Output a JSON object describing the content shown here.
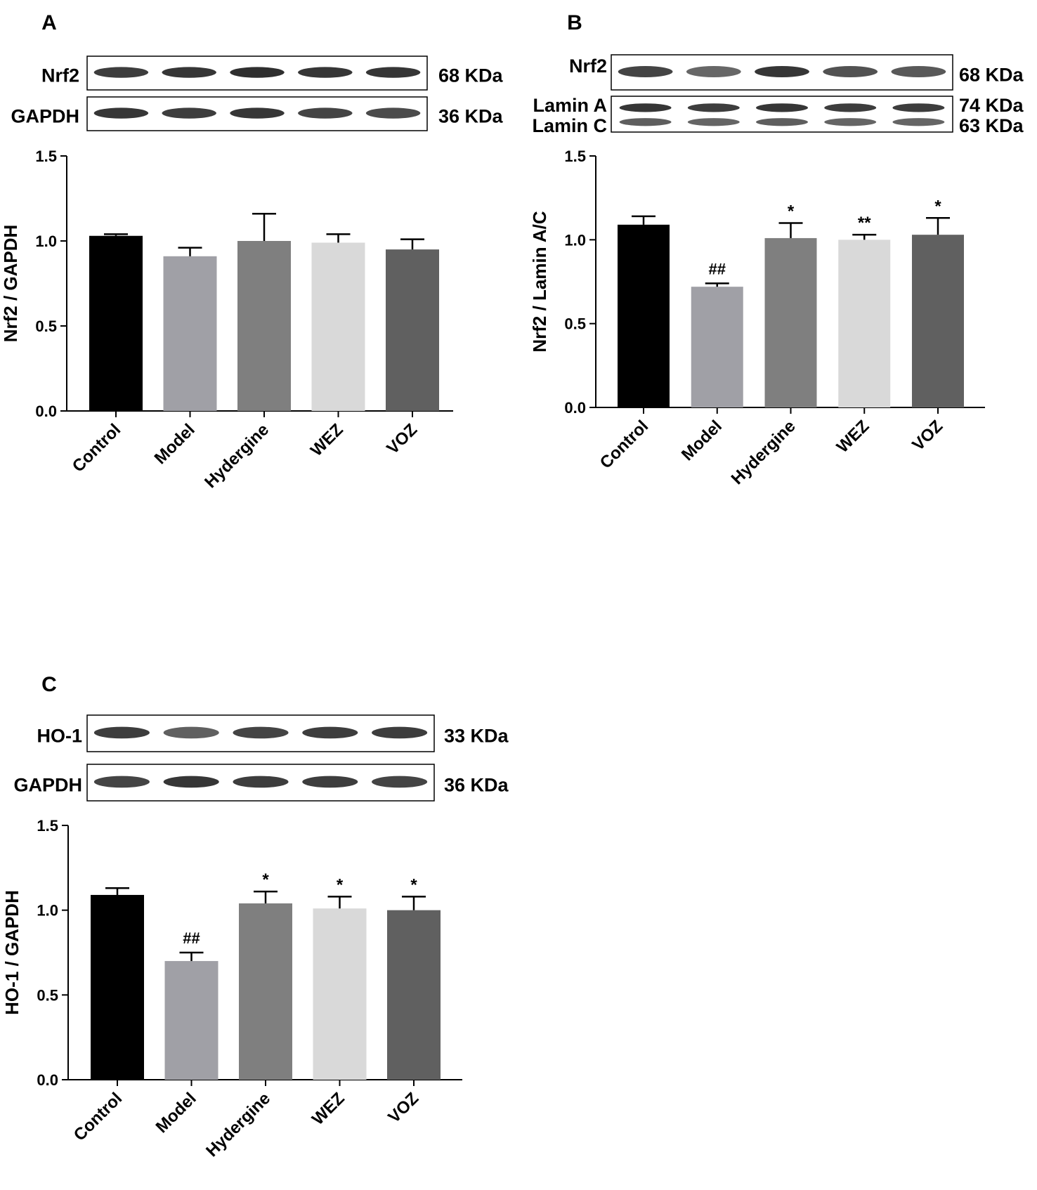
{
  "panels": [
    {
      "letter": "A",
      "blots": [
        {
          "label": "Nrf2",
          "kda": "68 KDa",
          "bands": [
            0.85,
            0.9,
            0.95,
            0.9,
            0.9
          ]
        },
        {
          "label": "GAPDH",
          "kda": "36 KDa",
          "bands": [
            0.9,
            0.85,
            0.9,
            0.8,
            0.75
          ]
        }
      ]
    },
    {
      "letter": "B",
      "blots": [
        {
          "label": "Nrf2",
          "kda": "68 KDa",
          "bands": [
            0.8,
            0.55,
            0.9,
            0.7,
            0.65
          ]
        },
        {
          "label": "Lamin A",
          "label2": "Lamin C",
          "kda": "74 KDa",
          "kda2": "63 KDa",
          "bands": [
            0.9,
            0.85,
            0.9,
            0.85,
            0.85
          ]
        }
      ]
    },
    {
      "letter": "C",
      "blots": [
        {
          "label": "HO-1",
          "kda": "33 KDa",
          "bands": [
            0.85,
            0.6,
            0.8,
            0.85,
            0.85
          ]
        },
        {
          "label": "GAPDH",
          "kda": "36 KDa",
          "bands": [
            0.8,
            0.9,
            0.85,
            0.85,
            0.8
          ]
        }
      ]
    }
  ],
  "chart_data": [
    {
      "type": "bar",
      "panel": "A",
      "categories": [
        "Control",
        "Model",
        "Hydergine",
        "WEZ",
        "VOZ"
      ],
      "values": [
        1.03,
        0.91,
        1.0,
        0.99,
        0.95
      ],
      "errors": [
        0.01,
        0.05,
        0.16,
        0.05,
        0.06
      ],
      "annotations": [
        "",
        "",
        "",
        "",
        ""
      ],
      "ylabel": "Nrf2 / GAPDH",
      "ylim": [
        0,
        1.5
      ],
      "yticks": [
        "0.0",
        "0.5",
        "1.0",
        "1.5"
      ],
      "colors": [
        "#000000",
        "#a0a0a6",
        "#7f7f7f",
        "#d9d9d9",
        "#606060"
      ]
    },
    {
      "type": "bar",
      "panel": "B",
      "categories": [
        "Control",
        "Model",
        "Hydergine",
        "WEZ",
        "VOZ"
      ],
      "values": [
        1.09,
        0.72,
        1.01,
        1.0,
        1.03
      ],
      "errors": [
        0.05,
        0.02,
        0.09,
        0.03,
        0.1
      ],
      "annotations": [
        "",
        "##",
        "*",
        "**",
        "*"
      ],
      "ylabel": "Nrf2 / Lamin A/C",
      "ylim": [
        0,
        1.5
      ],
      "yticks": [
        "0.0",
        "0.5",
        "1.0",
        "1.5"
      ],
      "colors": [
        "#000000",
        "#a0a0a6",
        "#7f7f7f",
        "#d9d9d9",
        "#606060"
      ]
    },
    {
      "type": "bar",
      "panel": "C",
      "categories": [
        "Control",
        "Model",
        "Hydergine",
        "WEZ",
        "VOZ"
      ],
      "values": [
        1.09,
        0.7,
        1.04,
        1.01,
        1.0
      ],
      "errors": [
        0.04,
        0.05,
        0.07,
        0.07,
        0.08
      ],
      "annotations": [
        "",
        "##",
        "*",
        "*",
        "*"
      ],
      "ylabel": "HO-1 / GAPDH",
      "ylim": [
        0,
        1.5
      ],
      "yticks": [
        "0.0",
        "0.5",
        "1.0",
        "1.5"
      ],
      "colors": [
        "#000000",
        "#a0a0a6",
        "#7f7f7f",
        "#d9d9d9",
        "#606060"
      ]
    }
  ]
}
